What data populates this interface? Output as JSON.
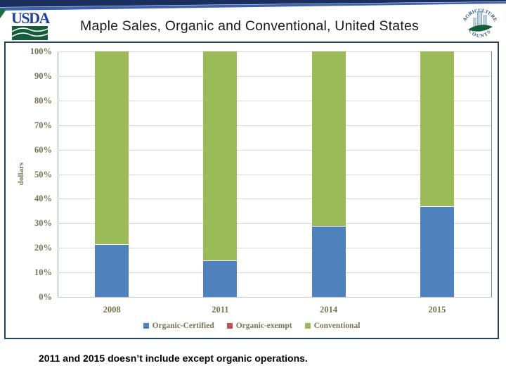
{
  "colors": {
    "accent-blue": "#4F81BD",
    "accent-red": "#C0504D",
    "accent-green": "#9BBB59",
    "axis-text": "#7C7257",
    "banner-navy": "#1B2F5E",
    "banner-blue": "#3D63AE",
    "banner-green": "#1E7145",
    "usda-navy": "#1F4196",
    "usda-green": "#155C38",
    "frame-border": "#24425F",
    "grid": "#D9D9D9",
    "title-text": "#1A1A1A",
    "logo-blue": "#1F5077"
  },
  "header": {
    "title": "Maple Sales, Organic and Conventional, United States",
    "usda_logo_text": "USDA",
    "agriculture_counts_logo": {
      "arc_top": "AGRICULTURE",
      "arc_bottom": "COUNTS"
    }
  },
  "chart_data": {
    "type": "bar",
    "stacked": true,
    "title": "",
    "xlabel": "",
    "ylabel": "dollars",
    "ylim": [
      0,
      100
    ],
    "grid": true,
    "legend_position": "bottom",
    "yticks": [
      "0%",
      "10%",
      "20%",
      "30%",
      "40%",
      "50%",
      "60%",
      "70%",
      "80%",
      "90%",
      "100%"
    ],
    "categories": [
      "2008",
      "2011",
      "2014",
      "2015"
    ],
    "series": [
      {
        "name": "Organic-Certified",
        "color": "#4F81BD",
        "values": [
          21.5,
          15,
          29,
          37
        ]
      },
      {
        "name": "Organic-exempt",
        "color": "#C0504D",
        "values": [
          0,
          0,
          0,
          0
        ]
      },
      {
        "name": "Conventional",
        "color": "#9BBB59",
        "values": [
          78.5,
          85,
          71,
          63
        ]
      }
    ]
  },
  "footer": {
    "note": "2011 and 2015 doesn’t include except organic operations."
  }
}
